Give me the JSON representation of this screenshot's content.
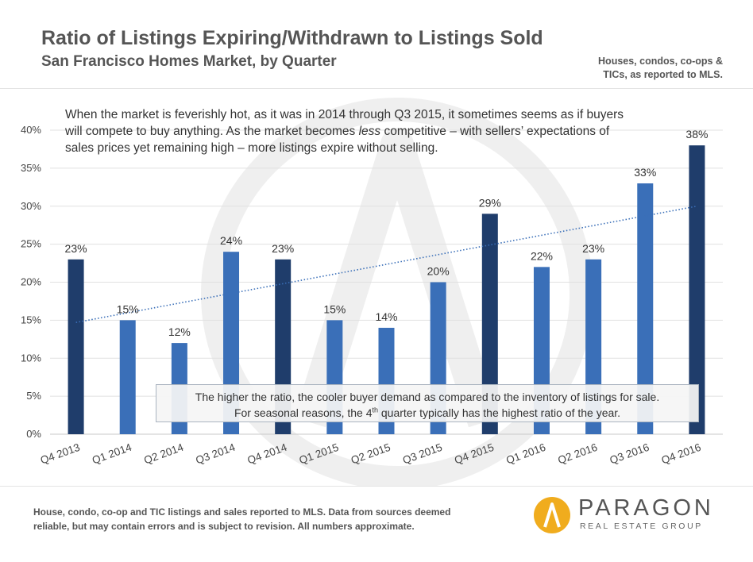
{
  "header": {
    "title": "Ratio of Listings Expiring/Withdrawn to Listings Sold",
    "subtitle": "San Francisco Homes Market, by Quarter",
    "scope_note": "Houses, condos, co-ops & TICs, as reported to MLS."
  },
  "annotations": {
    "top_pre": "When the market is feverishly hot, as it was in 2014 through Q3 2015, it sometimes seems as if buyers will compete to buy anything. As the market becomes ",
    "top_em": "less",
    "top_post": " competitive – with sellers’ expectations of sales prices yet remaining high – more listings expire without selling.",
    "bottom_line1": "The higher the ratio, the cooler buyer demand as compared to the inventory of listings for sale.",
    "bottom_line2_pre": "For seasonal reasons, the 4",
    "bottom_line2_sup": "th",
    "bottom_line2_post": " quarter typically has the highest  ratio of the year."
  },
  "footer": {
    "note": "House, condo, co-op and TIC listings and sales reported to MLS. Data from sources deemed reliable, but may contain errors and is subject to revision. All numbers approximate.",
    "logo_name": "PARAGON",
    "logo_tagline": "REAL ESTATE GROUP"
  },
  "colors": {
    "q4_bar": "#1f3d6b",
    "other_bar": "#3a6fb8",
    "trendline": "#3a6fb8",
    "logo": "#f0ac1e"
  },
  "chart_data": {
    "type": "bar",
    "categories": [
      "Q4 2013",
      "Q1 2014",
      "Q2 2014",
      "Q3 2014",
      "Q4 2014",
      "Q1 2015",
      "Q2 2015",
      "Q3 2015",
      "Q4 2015",
      "Q1 2016",
      "Q2 2016",
      "Q3 2016",
      "Q4 2016"
    ],
    "values": [
      23,
      15,
      12,
      24,
      23,
      15,
      14,
      20,
      29,
      22,
      23,
      33,
      38
    ],
    "data_labels": [
      "23%",
      "15%",
      "12%",
      "24%",
      "23%",
      "15%",
      "14%",
      "20%",
      "29%",
      "22%",
      "23%",
      "33%",
      "38%"
    ],
    "y_ticks": [
      "0%",
      "5%",
      "10%",
      "15%",
      "20%",
      "25%",
      "30%",
      "35%",
      "40%"
    ],
    "ylim": [
      0,
      40
    ],
    "y_tick_step": 5,
    "y_unit": "%",
    "grid": "horizontal",
    "legend": "none",
    "trendline": {
      "style": "dotted",
      "start": 14.7,
      "end": 30.0
    },
    "highlight": "Q4 bars darker"
  }
}
